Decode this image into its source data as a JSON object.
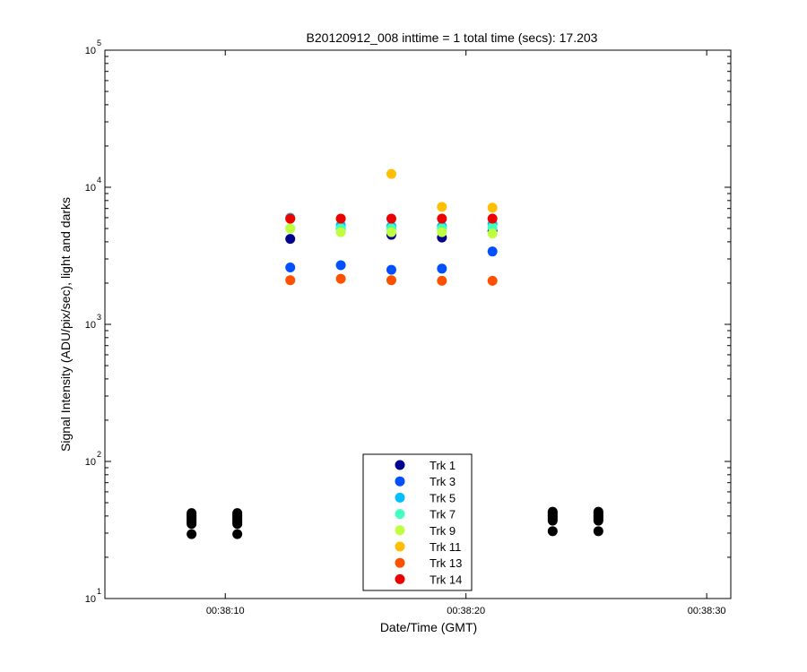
{
  "chart_data": {
    "type": "scatter",
    "title": "B20120912_008 inttime = 1 total time (secs): 17.203",
    "xlabel": "Date/Time (GMT)",
    "ylabel": "Signal Intensity (ADU/pix/sec), light and darks",
    "y_scale": "log",
    "ylim": [
      10,
      100000
    ],
    "xlim": [
      "00:38:05",
      "00:38:31"
    ],
    "x_ticks": [
      "00:38:10",
      "00:38:20",
      "00:38:30"
    ],
    "y_ticks": [
      {
        "base": "10",
        "exp": "1",
        "value": 10
      },
      {
        "base": "10",
        "exp": "2",
        "value": 100
      },
      {
        "base": "10",
        "exp": "3",
        "value": 1000
      },
      {
        "base": "10",
        "exp": "4",
        "value": 10000
      },
      {
        "base": "10",
        "exp": "5",
        "value": 100000
      }
    ],
    "grid": false,
    "legend_position": "bottom-center",
    "legend": [
      {
        "label": "Trk 1",
        "color": "#00008F"
      },
      {
        "label": "Trk 3",
        "color": "#0050FF"
      },
      {
        "label": "Trk 5",
        "color": "#00BFFF"
      },
      {
        "label": "Trk 7",
        "color": "#40FFBF"
      },
      {
        "label": "Trk 9",
        "color": "#BFFF40"
      },
      {
        "label": "Trk 11",
        "color": "#FFBF00"
      },
      {
        "label": "Trk 13",
        "color": "#FF5000"
      },
      {
        "label": "Trk 14",
        "color": "#EE0000"
      }
    ],
    "series": [
      {
        "name": "Trk 1",
        "color": "#00008F",
        "x": [
          "00:38:12.7",
          "00:38:14.8",
          "00:38:16.9",
          "00:38:19.0",
          "00:38:21.1"
        ],
        "y": [
          4200,
          5000,
          4500,
          4300,
          4800
        ]
      },
      {
        "name": "Trk 3",
        "color": "#0050FF",
        "x": [
          "00:38:12.7",
          "00:38:14.8",
          "00:38:16.9",
          "00:38:19.0",
          "00:38:21.1"
        ],
        "y": [
          2600,
          2700,
          2500,
          2550,
          3400
        ]
      },
      {
        "name": "Trk 5",
        "color": "#00BFFF",
        "x": [
          "00:38:12.7",
          "00:38:14.8",
          "00:38:16.9",
          "00:38:19.0",
          "00:38:21.1"
        ],
        "y": [
          6000,
          5300,
          5200,
          5200,
          5400
        ]
      },
      {
        "name": "Trk 7",
        "color": "#40FFBF",
        "x": [
          "00:38:12.7",
          "00:38:14.8",
          "00:38:16.9",
          "00:38:19.0",
          "00:38:21.1"
        ],
        "y": [
          5000,
          5000,
          5000,
          5000,
          5100
        ]
      },
      {
        "name": "Trk 9",
        "color": "#BFFF40",
        "x": [
          "00:38:12.7",
          "00:38:14.8",
          "00:38:16.9",
          "00:38:19.0",
          "00:38:21.1"
        ],
        "y": [
          5000,
          4700,
          4700,
          4700,
          4600
        ]
      },
      {
        "name": "Trk 11",
        "color": "#FFBF00",
        "x": [
          "00:38:12.7",
          "00:38:14.8",
          "00:38:16.9",
          "00:38:19.0",
          "00:38:21.1"
        ],
        "y": [
          5900,
          5900,
          12500,
          7200,
          7100
        ]
      },
      {
        "name": "Trk 13",
        "color": "#FF5000",
        "x": [
          "00:38:12.7",
          "00:38:14.8",
          "00:38:16.9",
          "00:38:19.0",
          "00:38:21.1"
        ],
        "y": [
          2100,
          2150,
          2100,
          2080,
          2080
        ]
      },
      {
        "name": "Trk 14",
        "color": "#EE0000",
        "x": [
          "00:38:12.7",
          "00:38:14.8",
          "00:38:16.9",
          "00:38:19.0",
          "00:38:21.1"
        ],
        "y": [
          5900,
          5900,
          5900,
          5900,
          5900
        ]
      }
    ],
    "darks": {
      "color": "#000000",
      "x": [
        "00:38:08.6",
        "00:38:10.5",
        "00:38:23.6",
        "00:38:25.5"
      ],
      "y_values": [
        [
          29.5,
          35,
          36,
          37,
          38,
          39,
          40,
          41,
          42
        ],
        [
          29.5,
          35,
          36,
          37,
          38,
          39,
          40,
          41,
          42
        ],
        [
          31,
          37,
          38,
          39,
          40,
          41,
          42,
          43
        ],
        [
          31,
          37,
          38,
          39,
          40,
          41,
          42,
          43
        ]
      ]
    }
  }
}
